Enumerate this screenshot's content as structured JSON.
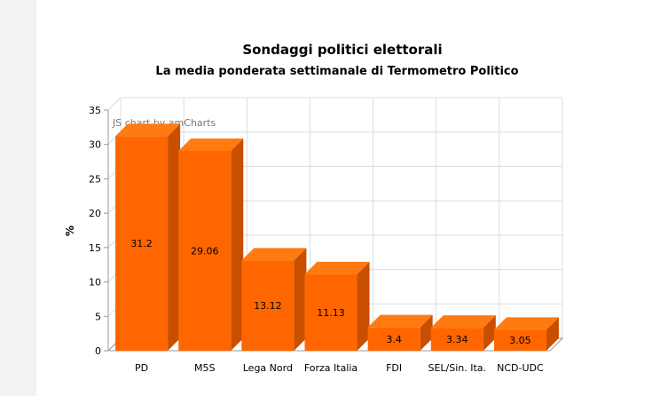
{
  "chart_data": {
    "type": "bar",
    "title": "Sondaggi politici elettorali",
    "subtitle": "La media ponderata settimanale di Termometro Politico",
    "ylabel": "%",
    "xlabel": "",
    "watermark": "JS chart by amCharts",
    "ylim": [
      0,
      35
    ],
    "yticks": [
      0,
      5,
      10,
      15,
      20,
      25,
      30,
      35
    ],
    "grid": true,
    "three_d": true,
    "categories": [
      "PD",
      "M5S",
      "Lega Nord",
      "Forza Italia",
      "FDI",
      "SEL/Sin. Ita.",
      "NCD-UDC"
    ],
    "values": [
      31.2,
      29.06,
      13.12,
      11.13,
      3.4,
      3.34,
      3.05
    ],
    "data_labels": [
      "31.2",
      "29.06",
      "13.12",
      "11.13",
      "3.4",
      "3.34",
      "3.05"
    ]
  },
  "colors": {
    "bar_front": "#ff6600",
    "bar_top": "#ff7a10",
    "bar_side": "#c94f00",
    "grid": "#dcdcdc",
    "axis": "#999999",
    "text": "#000000",
    "watermark": "#777777"
  }
}
